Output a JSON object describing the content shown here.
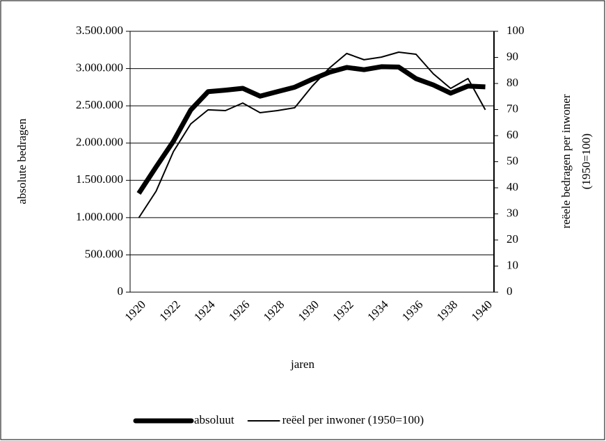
{
  "chart_data": {
    "type": "line",
    "categories": [
      "1920",
      null,
      "1922",
      null,
      "1924",
      null,
      "1926",
      null,
      "1928",
      null,
      "1930",
      null,
      "1932",
      null,
      "1934",
      null,
      "1936",
      null,
      "1938",
      null,
      "1940"
    ],
    "xlabel": "jaren",
    "ylabel": "absolute bedragen",
    "y2label": [
      "reëele bedragen per inwoner",
      "(1950=100)"
    ],
    "series": [
      {
        "name": "absoluut",
        "color": "#000000",
        "line_width": 7,
        "values": [
          1325000,
          1680000,
          2025000,
          2445000,
          2690000,
          2710000,
          2735000,
          2630000,
          2690000,
          2750000,
          2855000,
          2950000,
          3015000,
          2985000,
          3025000,
          3020000,
          2865000,
          2780000,
          2670000,
          2765000,
          2755000
        ]
      },
      {
        "name": "reëel per inwoner (1950=100)",
        "color": "#000000",
        "line_width": 2,
        "axis": "y2",
        "values": [
          28.5,
          38.7,
          53.9,
          64.5,
          69.9,
          69.6,
          72.5,
          68.8,
          69.6,
          70.7,
          78.9,
          85.9,
          91.5,
          89.1,
          90.1,
          92,
          91.2,
          83.7,
          78.1,
          81.9,
          69.9
        ]
      }
    ],
    "ylim": [
      0,
      3500000
    ],
    "yticks": [
      0,
      {
        "value": 500000,
        "label": "500.000"
      },
      {
        "value": 1000000,
        "label": "1.000.000"
      },
      {
        "value": 1500000,
        "label": "1.500.000"
      },
      {
        "value": 2000000,
        "label": "2.000.000"
      },
      {
        "value": 2500000,
        "label": "2.500.000"
      },
      {
        "value": 3000000,
        "label": "3.000.000"
      },
      {
        "value": 3500000,
        "label": "3.500.000"
      }
    ],
    "y2lim": [
      0,
      100
    ],
    "y2ticks": [
      0,
      10,
      20,
      30,
      40,
      50,
      60,
      70,
      80,
      90,
      100
    ],
    "grid": true,
    "legend": "bottom"
  }
}
